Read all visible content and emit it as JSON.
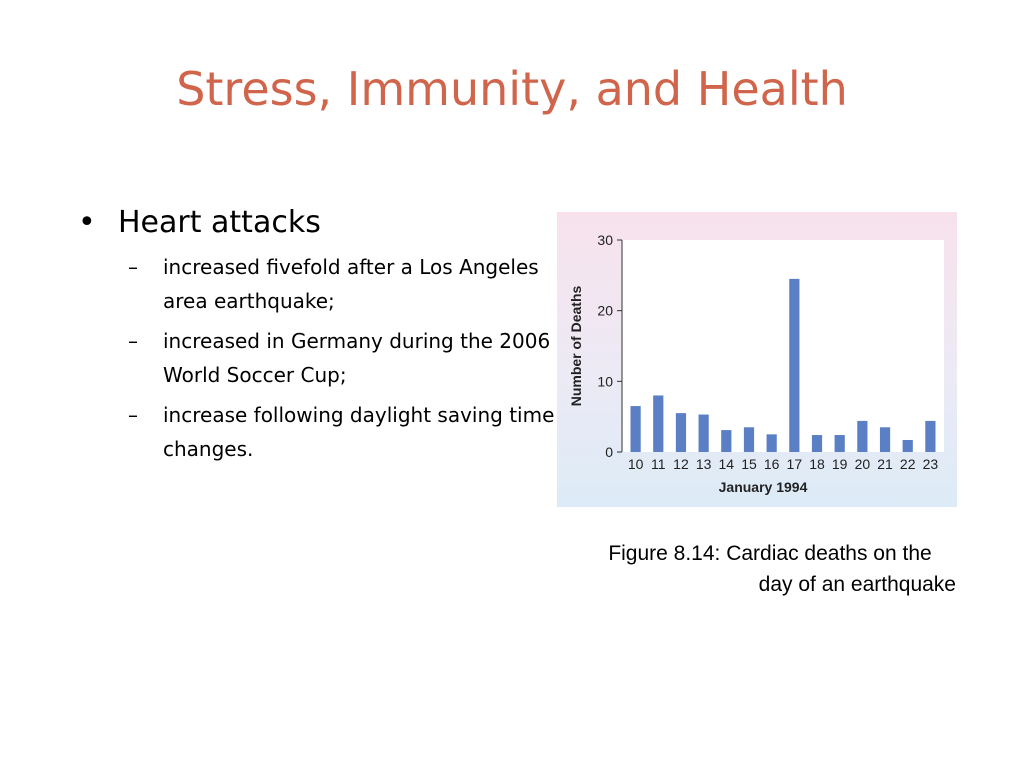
{
  "slide": {
    "title": "Stress, Immunity, and Health",
    "bullet": {
      "symbol": "•",
      "text": "Heart attacks",
      "sub_symbol": "–",
      "subitems": [
        "increased fivefold after a Los Angeles area earthquake;",
        "increased in Germany during the 2006 World Soccer Cup;",
        "increase following daylight saving time changes."
      ]
    },
    "caption": {
      "line1": "Figure 8.14: Cardiac deaths on the",
      "line2": "day of an earthquake"
    }
  },
  "colors": {
    "title": "#d0654b",
    "bar": "#5b7fc4",
    "plot_background": "#ffffff"
  },
  "chart_data": {
    "type": "bar",
    "categories": [
      "10",
      "11",
      "12",
      "13",
      "14",
      "15",
      "16",
      "17",
      "18",
      "19",
      "20",
      "21",
      "22",
      "23"
    ],
    "values": [
      6.5,
      8,
      5.5,
      5.3,
      3.1,
      3.5,
      2.5,
      24.5,
      2.4,
      2.4,
      4.4,
      3.5,
      1.7,
      4.4
    ],
    "title": "",
    "xlabel": "January 1994",
    "ylabel": "Number of Deaths",
    "ylim": [
      0,
      30
    ],
    "yticks": [
      0,
      10,
      20,
      30
    ],
    "grid": false
  }
}
